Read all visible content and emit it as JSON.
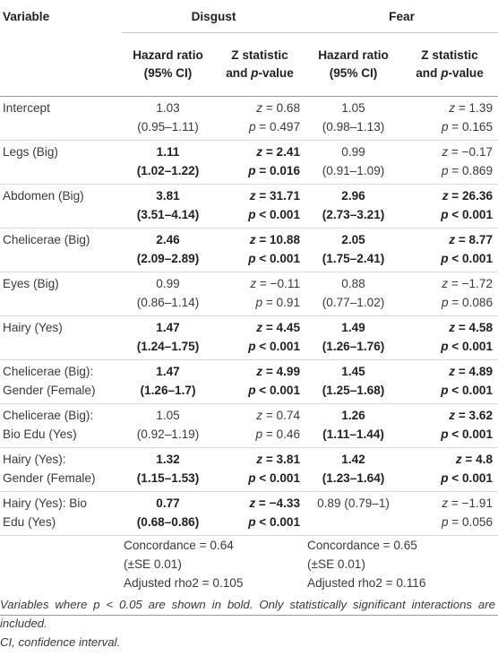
{
  "headers": {
    "variable": "Variable",
    "group_disgust": "Disgust",
    "group_fear": "Fear",
    "hr_line1": "Hazard ratio",
    "hr_line2": "(95% CI)",
    "z_line1": "Z statistic",
    "z_line2": "and p-value"
  },
  "rows": [
    {
      "label_1": "Intercept",
      "label_2": "",
      "d_hr": "1.03",
      "d_ci": "(0.95–1.11)",
      "d_z": "z = 0.68",
      "d_p": "p = 0.497",
      "f_hr": "1.05",
      "f_ci": "(0.98–1.13)",
      "f_z": "z = 1.39",
      "f_p": "p = 0.165"
    },
    {
      "label_1": "Legs (Big)",
      "label_2": "",
      "d_hr": "1.11",
      "d_ci": "(1.02–1.22)",
      "d_z": "z = 2.41",
      "d_p": "p = 0.016",
      "f_hr": "0.99",
      "f_ci": "(0.91–1.09)",
      "f_z": "z = −0.17",
      "f_p": "p = 0.869"
    },
    {
      "label_1": "Abdomen (Big)",
      "label_2": "",
      "d_hr": "3.81",
      "d_ci": "(3.51–4.14)",
      "d_z": "z = 31.71",
      "d_p": "p < 0.001",
      "f_hr": "2.96",
      "f_ci": "(2.73–3.21)",
      "f_z": "z = 26.36",
      "f_p": "p < 0.001"
    },
    {
      "label_1": "Chelicerae (Big)",
      "label_2": "",
      "d_hr": "2.46",
      "d_ci": "(2.09–2.89)",
      "d_z": "z = 10.88",
      "d_p": "p < 0.001",
      "f_hr": "2.05",
      "f_ci": "(1.75–2.41)",
      "f_z": "z = 8.77",
      "f_p": "p < 0.001"
    },
    {
      "label_1": "Eyes (Big)",
      "label_2": "",
      "d_hr": "0.99",
      "d_ci": "(0.86–1.14)",
      "d_z": "z = −0.11",
      "d_p": "p = 0.91",
      "f_hr": "0.88",
      "f_ci": "(0.77–1.02)",
      "f_z": "z = −1.72",
      "f_p": "p = 0.086"
    },
    {
      "label_1": "Hairy (Yes)",
      "label_2": "",
      "d_hr": "1.47",
      "d_ci": "(1.24–1.75)",
      "d_z": "z = 4.45",
      "d_p": "p < 0.001",
      "f_hr": "1.49",
      "f_ci": "(1.26–1.76)",
      "f_z": "z = 4.58",
      "f_p": "p < 0.001"
    },
    {
      "label_1": "Chelicerae (Big):",
      "label_2": "Gender (Female)",
      "d_hr": "1.47",
      "d_ci": "(1.26–1.7)",
      "d_z": "z = 4.99",
      "d_p": "p < 0.001",
      "f_hr": "1.45",
      "f_ci": "(1.25–1.68)",
      "f_z": "z = 4.89",
      "f_p": "p < 0.001"
    },
    {
      "label_1": "Chelicerae (Big):",
      "label_2": "Bio Edu (Yes)",
      "d_hr": "1.05",
      "d_ci": "(0.92–1.19)",
      "d_z": "z = 0.74",
      "d_p": "p = 0.46",
      "f_hr": "1.26",
      "f_ci": "(1.11–1.44)",
      "f_z": "z = 3.62",
      "f_p": "p < 0.001"
    },
    {
      "label_1": "Hairy (Yes):",
      "label_2": "Gender (Female)",
      "d_hr": "1.32",
      "d_ci": "(1.15–1.53)",
      "d_z": "z = 3.81",
      "d_p": "p < 0.001",
      "f_hr": "1.42",
      "f_ci": "(1.23–1.64)",
      "f_z": "z = 4.8",
      "f_p": "p < 0.001"
    },
    {
      "label_1": "Hairy (Yes): Bio",
      "label_2": "Edu (Yes)",
      "d_hr": "0.77",
      "d_ci": "(0.68–0.86)",
      "d_z": "z = −4.33",
      "d_p": "p < 0.001",
      "f_hr": "0.89 (0.79–1)",
      "f_ci": "",
      "f_z": "z = −1.91",
      "f_p": "p = 0.056"
    }
  ],
  "summary": {
    "disgust_concordance": "Concordance = 0.64",
    "disgust_se": "(±SE 0.01)",
    "disgust_rho": "Adjusted rho2 = 0.105",
    "fear_concordance": "Concordance = 0.65",
    "fear_se": "(±SE 0.01)",
    "fear_rho": "Adjusted rho2 = 0.116"
  },
  "notes": {
    "line1": "Variables where p < 0.05 are shown in bold. Only statistically significant interactions are included.",
    "line2": "CI, confidence interval."
  }
}
